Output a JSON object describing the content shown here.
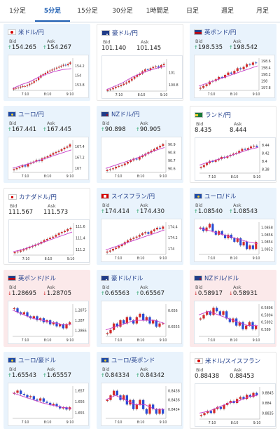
{
  "tabs": [
    {
      "label": "1分足",
      "active": false
    },
    {
      "label": "5分足",
      "active": true
    },
    {
      "label": "15分足",
      "active": false
    },
    {
      "label": "30分足",
      "active": false
    },
    {
      "label": "1時間足",
      "active": false
    },
    {
      "label": "日足",
      "active": false
    },
    {
      "label": "週足",
      "active": false
    },
    {
      "label": "月足",
      "active": false
    }
  ],
  "labels": {
    "bid": "Bid",
    "ask": "Ask"
  },
  "colors": {
    "accent": "#1f5fb3",
    "card_up": "#e9f3fc",
    "card_down": "#fbe9ea",
    "arrow_up": "#189b5e",
    "arrow_down": "#d22a2a",
    "candle_up": "#d42a2a",
    "candle_down": "#2a4bd4",
    "ma": "#c83cc8"
  },
  "cards": [
    {
      "pair": "米ドル/円",
      "flag": "us",
      "tone": "up",
      "bid_arrow": "↑",
      "bid": "154.265",
      "ask_arrow": "↑",
      "ask": "154.267",
      "x_ticks": [
        "7:10",
        "8:10",
        "9:10"
      ],
      "y_ticks": [
        "154.2",
        "154",
        "153.8"
      ],
      "yl": 153.68,
      "yh": 154.36,
      "candles": [
        153.72,
        153.73,
        153.74,
        153.76,
        153.77,
        153.77,
        153.79,
        153.82,
        153.84,
        153.88,
        153.9,
        153.95,
        154.0,
        154.02,
        154.05,
        154.08,
        154.1,
        154.12,
        154.14,
        154.16,
        154.18,
        154.2,
        154.22,
        154.21,
        154.24,
        154.27
      ],
      "ma": [
        153.72,
        153.8,
        153.86,
        153.95,
        154.02,
        154.08,
        154.12,
        154.14
      ]
    },
    {
      "pair": "豪ドル/円",
      "flag": "au",
      "tone": "flat",
      "bid_arrow": "",
      "bid": "101.140",
      "ask_arrow": "",
      "ask": "101.145",
      "x_ticks": [
        "7:10",
        "8:10",
        "9:10"
      ],
      "y_ticks": [
        "101",
        "100.8"
      ],
      "yl": 100.7,
      "yh": 101.22,
      "candles": [
        100.72,
        100.73,
        100.75,
        100.77,
        100.78,
        100.8,
        100.82,
        100.84,
        100.87,
        100.9,
        100.93,
        100.96,
        100.98,
        101.02,
        101.05,
        101.04,
        101.07,
        101.09,
        101.1,
        101.08,
        101.12,
        101.14
      ],
      "ma": [
        100.72,
        100.78,
        100.84,
        100.92,
        100.98,
        101.03,
        101.07,
        101.1
      ]
    },
    {
      "pair": "英ポンド/円",
      "flag": "gb",
      "tone": "up",
      "bid_arrow": "↑",
      "bid": "198.535",
      "ask_arrow": "↑",
      "ask": "198.542",
      "x_ticks": [
        "7:10",
        "8:10",
        "9:10"
      ],
      "y_ticks": [
        "198.6",
        "198.4",
        "198.2",
        "198",
        "197.8"
      ],
      "yl": 197.72,
      "yh": 198.68,
      "candles": [
        197.8,
        197.85,
        197.9,
        197.98,
        198.0,
        198.05,
        198.12,
        198.1,
        198.18,
        198.25,
        198.22,
        198.3,
        198.38,
        198.35,
        198.42,
        198.5,
        198.48,
        198.55,
        198.53
      ],
      "ma": [
        197.85,
        197.95,
        198.05,
        198.15,
        198.25,
        198.35,
        198.45
      ]
    },
    {
      "pair": "ユーロ/円",
      "flag": "eu",
      "tone": "up",
      "bid_arrow": "↑",
      "bid": "167.441",
      "ask_arrow": "↑",
      "ask": "167.445",
      "x_ticks": [
        "7:10",
        "8:10",
        "9:10"
      ],
      "y_ticks": [
        "167.4",
        "167.2",
        "167"
      ],
      "yl": 166.92,
      "yh": 167.52,
      "candles": [
        166.98,
        167.0,
        167.02,
        167.05,
        167.03,
        167.08,
        167.1,
        167.12,
        167.15,
        167.13,
        167.18,
        167.2,
        167.22,
        167.25,
        167.28,
        167.3,
        167.32,
        167.35,
        167.38,
        167.4,
        167.44
      ],
      "ma": [
        167.0,
        167.05,
        167.1,
        167.16,
        167.22,
        167.28,
        167.34
      ]
    },
    {
      "pair": "NZドル/円",
      "flag": "nz",
      "tone": "up",
      "bid_arrow": "↑",
      "bid": "90.898",
      "ask_arrow": "↑",
      "ask": "90.905",
      "x_ticks": [
        "7:10",
        "8:10",
        "9:10"
      ],
      "y_ticks": [
        "90.9",
        "90.8",
        "90.7",
        "90.6"
      ],
      "yl": 90.55,
      "yh": 90.95,
      "candles": [
        90.58,
        90.59,
        90.6,
        90.62,
        90.63,
        90.64,
        90.66,
        90.68,
        90.7,
        90.72,
        90.71,
        90.74,
        90.76,
        90.78,
        90.8,
        90.82,
        90.84,
        90.86,
        90.88,
        90.9
      ],
      "ma": [
        90.6,
        90.64,
        90.68,
        90.72,
        90.77,
        90.82,
        90.86
      ]
    },
    {
      "pair": "ランド/円",
      "flag": "za",
      "tone": "flat",
      "bid_arrow": "",
      "bid": "8.435",
      "ask_arrow": "",
      "ask": "8.444",
      "x_ticks": [
        "7:10",
        "8:10",
        "9:10"
      ],
      "y_ticks": [
        "8.44",
        "8.42",
        "8.4",
        "8.38"
      ],
      "yl": 8.37,
      "yh": 8.45,
      "candles": [
        8.385,
        8.39,
        8.395,
        8.4,
        8.398,
        8.402,
        8.405,
        8.41,
        8.408,
        8.412,
        8.415,
        8.418,
        8.42,
        8.425,
        8.43,
        8.428,
        8.432,
        8.436,
        8.438,
        8.435
      ],
      "ma": [
        8.39,
        8.398,
        8.405,
        8.412,
        8.42,
        8.428,
        8.434
      ]
    },
    {
      "pair": "カナダドル/円",
      "flag": "ca",
      "tone": "flat",
      "bid_arrow": "",
      "bid": "111.567",
      "ask_arrow": "",
      "ask": "111.573",
      "x_ticks": [
        "7:10",
        "8:10",
        "9:10"
      ],
      "y_ticks": [
        "111.6",
        "111.4",
        "111.2"
      ],
      "yl": 111.1,
      "yh": 111.66,
      "candles": [
        111.15,
        111.16,
        111.18,
        111.2,
        111.22,
        111.24,
        111.26,
        111.28,
        111.3,
        111.33,
        111.36,
        111.38,
        111.4,
        111.42,
        111.45,
        111.48,
        111.5,
        111.52,
        111.55,
        111.57
      ],
      "ma": [
        111.16,
        111.2,
        111.26,
        111.32,
        111.38,
        111.44,
        111.5
      ]
    },
    {
      "pair": "スイスフラン/円",
      "flag": "ch",
      "tone": "up",
      "bid_arrow": "↑",
      "bid": "174.414",
      "ask_arrow": "↑",
      "ask": "174.430",
      "x_ticks": [
        "7:10",
        "8:10",
        "9:10"
      ],
      "y_ticks": [
        "174.4",
        "174.2",
        "174"
      ],
      "yl": 173.9,
      "yh": 174.48,
      "candles": [
        173.95,
        173.97,
        174.0,
        174.02,
        174.05,
        174.08,
        174.12,
        174.15,
        174.18,
        174.2,
        174.22,
        174.25,
        174.28,
        174.3,
        174.27,
        174.32,
        174.35,
        174.38,
        174.36,
        174.4
      ],
      "ma": [
        173.98,
        174.04,
        174.1,
        174.16,
        174.22,
        174.28,
        174.34
      ]
    },
    {
      "pair": "ユーロ/ドル",
      "flag": "eu",
      "tone": "up",
      "bid_arrow": "↑",
      "bid": "1.08540",
      "ask_arrow": "↑",
      "ask": "1.08543",
      "x_ticks": [
        "7:10",
        "8:10",
        "9:10"
      ],
      "y_ticks": [
        "1.0858",
        "1.0856",
        "1.0854",
        "1.0852"
      ],
      "yl": 1.08505,
      "yh": 1.08595,
      "candles": [
        1.0858,
        1.0857,
        1.0858,
        1.0859,
        1.0857,
        1.0856,
        1.0857,
        1.0856,
        1.0855,
        1.0856,
        1.0855,
        1.0854,
        1.0855,
        1.0853,
        1.0854,
        1.0852,
        1.0853,
        1.0852,
        1.0854
      ],
      "ma": [
        1.08578,
        1.08572,
        1.08564,
        1.08556,
        1.08548,
        1.0854,
        1.08535
      ]
    },
    {
      "pair": "英ポンド/ドル",
      "flag": "gb",
      "tone": "down",
      "bid_arrow": "↓",
      "bid": "1.28695",
      "ask_arrow": "↓",
      "ask": "1.28705",
      "x_ticks": [
        "7:10",
        "8:10",
        "9:10"
      ],
      "y_ticks": [
        "1.2875",
        "1.287",
        "1.2865"
      ],
      "yl": 1.2862,
      "yh": 1.2878,
      "candles": [
        1.2876,
        1.2874,
        1.2873,
        1.2874,
        1.2872,
        1.2871,
        1.2872,
        1.287,
        1.2871,
        1.2869,
        1.287,
        1.2868,
        1.2869,
        1.2867,
        1.2868,
        1.2866,
        1.2868,
        1.2869
      ],
      "ma": [
        1.2875,
        1.2873,
        1.2871,
        1.287,
        1.2869,
        1.2868,
        1.2868
      ]
    },
    {
      "pair": "豪ドル/ドル",
      "flag": "au",
      "tone": "up",
      "bid_arrow": "↑",
      "bid": "0.65563",
      "ask_arrow": "↑",
      "ask": "0.65567",
      "x_ticks": [
        "7:10",
        "8:10",
        "9:10"
      ],
      "y_ticks": [
        "0.656",
        "0.6555"
      ],
      "yl": 0.6552,
      "yh": 0.6562,
      "candles": [
        0.6553,
        0.6554,
        0.6556,
        0.6555,
        0.6557,
        0.6556,
        0.6558,
        0.6557,
        0.6556,
        0.6558,
        0.6559,
        0.6557,
        0.6558,
        0.6556,
        0.6557,
        0.6555,
        0.6556,
        0.6556
      ],
      "ma": [
        0.6554,
        0.6555,
        0.6556,
        0.6557,
        0.6557,
        0.6557,
        0.6556
      ]
    },
    {
      "pair": "NZドル/ドル",
      "flag": "nz",
      "tone": "down",
      "bid_arrow": "↓",
      "bid": "0.58917",
      "ask_arrow": "↓",
      "ask": "0.58931",
      "x_ticks": [
        "7:10",
        "8:10",
        "9:10"
      ],
      "y_ticks": [
        "0.5896",
        "0.5894",
        "0.5892",
        "0.589"
      ],
      "yl": 0.5888,
      "yh": 0.5897,
      "candles": [
        0.5893,
        0.5894,
        0.5895,
        0.5894,
        0.5896,
        0.5895,
        0.5894,
        0.5895,
        0.5893,
        0.5892,
        0.5893,
        0.5891,
        0.5892,
        0.589,
        0.5891,
        0.5892,
        0.589,
        0.5891
      ],
      "ma": [
        0.5894,
        0.5895,
        0.5894,
        0.5893,
        0.5892,
        0.5891,
        0.5891
      ]
    },
    {
      "pair": "ユーロ/豪ドル",
      "flag": "eu",
      "tone": "up",
      "bid_arrow": "↑",
      "bid": "1.65543",
      "ask_arrow": "↑",
      "ask": "1.65557",
      "x_ticks": [
        "7:10",
        "8:10",
        "9:10"
      ],
      "y_ticks": [
        "1.657",
        "1.656",
        "1.655"
      ],
      "yl": 1.6545,
      "yh": 1.6574,
      "candles": [
        1.6568,
        1.657,
        1.6567,
        1.6566,
        1.6564,
        1.6565,
        1.6562,
        1.6561,
        1.6563,
        1.656,
        1.6559,
        1.6557,
        1.6558,
        1.6556,
        1.6554,
        1.6555,
        1.6553,
        1.6555
      ],
      "ma": [
        1.6568,
        1.6565,
        1.6562,
        1.6559,
        1.6557,
        1.6555,
        1.6554
      ]
    },
    {
      "pair": "ユーロ/英ポンド",
      "flag": "eu",
      "tone": "up",
      "bid_arrow": "↑",
      "bid": "0.84334",
      "ask_arrow": "↑",
      "ask": "0.84342",
      "x_ticks": [
        "7:10",
        "8:10",
        "9:10"
      ],
      "y_ticks": [
        "0.8438",
        "0.8436",
        "0.8434"
      ],
      "yl": 0.8432,
      "yh": 0.8439,
      "candles": [
        0.8436,
        0.8437,
        0.8438,
        0.8437,
        0.8436,
        0.8437,
        0.8435,
        0.8436,
        0.8434,
        0.8435,
        0.8436,
        0.8434,
        0.8433,
        0.8435,
        0.8434,
        0.8433,
        0.8434,
        0.8433
      ],
      "ma": [
        0.8436,
        0.8437,
        0.8436,
        0.8435,
        0.8435,
        0.8434,
        0.8434
      ]
    },
    {
      "pair": "米ドル/スイスフラン",
      "flag": "us",
      "tone": "flat",
      "bid_arrow": "",
      "bid": "0.88438",
      "ask_arrow": "",
      "ask": "0.88453",
      "x_ticks": [
        "7:10",
        "8:10",
        "9:10"
      ],
      "y_ticks": [
        "0.8845",
        "0.884",
        "0.8835"
      ],
      "yl": 0.8832,
      "yh": 0.8848,
      "candles": [
        0.8834,
        0.8835,
        0.8836,
        0.8835,
        0.8837,
        0.8838,
        0.8837,
        0.8839,
        0.884,
        0.8841,
        0.884,
        0.8842,
        0.8843,
        0.8842,
        0.8844,
        0.8843,
        0.8845,
        0.8844
      ],
      "ma": [
        0.8835,
        0.8836,
        0.8838,
        0.884,
        0.8841,
        0.8843,
        0.8844
      ]
    }
  ]
}
